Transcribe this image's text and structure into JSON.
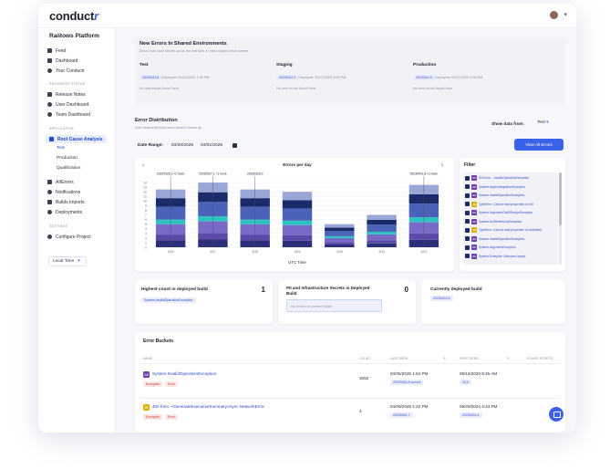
{
  "app": {
    "logo_main": "conduct",
    "logo_accent": "r"
  },
  "sidebar": {
    "org": "Raiitows Platform",
    "items": [
      {
        "label": "Feed"
      },
      {
        "label": "Dashboard"
      },
      {
        "label": "Your Conductr"
      }
    ],
    "section_progress": "PROGRESS STATUS",
    "progress_items": [
      {
        "label": "Release Notes"
      },
      {
        "label": "User Dashboard"
      },
      {
        "label": "Team Dashboard"
      }
    ],
    "section_application": "APPLICATION",
    "app_items": [
      {
        "label": "Root Cause Analysis"
      }
    ],
    "sub_items": [
      "Test",
      "Production",
      "Qualification"
    ],
    "more_items": [
      {
        "label": "AIIErrors"
      },
      {
        "label": "Notifications"
      },
      {
        "label": "Builds Imports"
      },
      {
        "label": "Deployments"
      }
    ],
    "section_settings": "SETTINGS",
    "settings_items": [
      {
        "label": "Configure Project"
      }
    ],
    "timezone": "Local Time"
  },
  "new_errors": {
    "title": "New Errors In Shared Environments",
    "subtitle": "Errors that have shown up for the first time in each shared environment",
    "columns": [
      {
        "env": "Test",
        "build": "20230411.8",
        "deployed": "Deployed: 04/01/2025 1:34 PM",
        "empty": "No new errors found here"
      },
      {
        "env": "Staging",
        "build": "20230411.3",
        "deployed": "Deployed: 03/27/2025 3:30 PM",
        "empty": "No new errors found here"
      },
      {
        "env": "Production",
        "build": "20230411.5",
        "deployed": "Deployed: 03/27/2025 3:30 PM",
        "empty": "No new errors found here"
      }
    ]
  },
  "distribution": {
    "title": "Error Distribution",
    "subtitle": "How frequently each error bucket shows up",
    "show_data_label": "Show data from:",
    "show_data_value": "Test",
    "date_range_label": "Date Range:",
    "date_from": "03/26/2025",
    "date_to": "04/01/2025",
    "view_all": "View All Errors",
    "filter_title": "Filter",
    "filter_items": [
      {
        "tag": "C#",
        "text": "500 from ...InvalidOperationException"
      },
      {
        "tag": "C#",
        "text": "System.AsyncIntegrationException"
      },
      {
        "tag": "C#",
        "text": "System.InvalidOperationException"
      },
      {
        "tag": "JS",
        "text": "TypeError: Cannot read properties of null"
      },
      {
        "tag": "C#",
        "text": "System.ArgumentOutOfRangeException"
      },
      {
        "tag": "C#",
        "text": "System.NullReferenceException"
      },
      {
        "tag": "JS",
        "text": "TypeError: Cannot read properties of undefined"
      },
      {
        "tag": "C#",
        "text": "System.InvalidOperationException"
      },
      {
        "tag": "C#",
        "text": "System.ArgumentException"
      },
      {
        "tag": "C#",
        "text": "System.Exception Unknown Import"
      }
    ]
  },
  "chart_data": {
    "type": "bar",
    "title": "Errors per day",
    "xlabel": "UTC Time",
    "ylabel": "",
    "ylim": [
      0,
      15
    ],
    "yticks": [
      0,
      1,
      2,
      3,
      4,
      5,
      6,
      7,
      8,
      9,
      10,
      11,
      12,
      13,
      14
    ],
    "categories": [
      "3/26",
      "3/27",
      "3/28",
      "3/29",
      "3/30",
      "3/31",
      "4/01"
    ],
    "totals": [
      12.5,
      14,
      12.5,
      12,
      5,
      7,
      13.5
    ],
    "series_colors": [
      "#2d2f7a",
      "#5a4ba8",
      "#7a6ac8",
      "#2dc2c0",
      "#4a63b8",
      "#1b2a6b",
      "#9aa6d8"
    ],
    "stack_fractions": [
      0.12,
      0.1,
      0.18,
      0.08,
      0.22,
      0.15,
      0.15
    ],
    "annotations": [
      {
        "category": "3/26",
        "text": "20230326.3 +2 more"
      },
      {
        "category": "3/27",
        "text": "20230327.1 +1 more"
      },
      {
        "category": "3/28",
        "text": "20230328.3"
      },
      {
        "category": "4/01",
        "text": "20230401.8 +2 more"
      }
    ],
    "legend": "none",
    "grid": true
  },
  "highest": {
    "title": "Highest count in deployed build",
    "count": "1",
    "tag": "System.InvalidOperationException"
  },
  "pii": {
    "title": "PII and Infrastructure Secrets in Deployed Build",
    "count": "0",
    "empty": "No errors in current build"
  },
  "current_build": {
    "title": "Currently deployed build",
    "tag": "20230401.8"
  },
  "buckets": {
    "title": "Error Buckets",
    "headers": [
      "NAME",
      "COUNT",
      "LAST SEEN",
      "FIRST SEEN",
      "FOUND TICKETS"
    ],
    "rows": [
      {
        "lang": "C#",
        "name": "System.InvalidOperationException",
        "tags": [
          "Exception",
          "Error"
        ],
        "count": "3052",
        "last": "04/05/2025 1:54 PM",
        "last_tag": "20230401.8 current",
        "first": "09/16/2020 8:45 AM",
        "first_tag": "10.0"
      },
      {
        "lang": "JS",
        "name": "400 from ~/GenerateExecutiveSummaryAsync NetworkError",
        "tags": [
          "Exception",
          "Error"
        ],
        "count": "4",
        "last": "04/09/2025 1:22 PM",
        "last_tag": "20230401.7",
        "first": "09/29/2024 4:43 PM",
        "first_tag": "20230401.4"
      }
    ]
  }
}
